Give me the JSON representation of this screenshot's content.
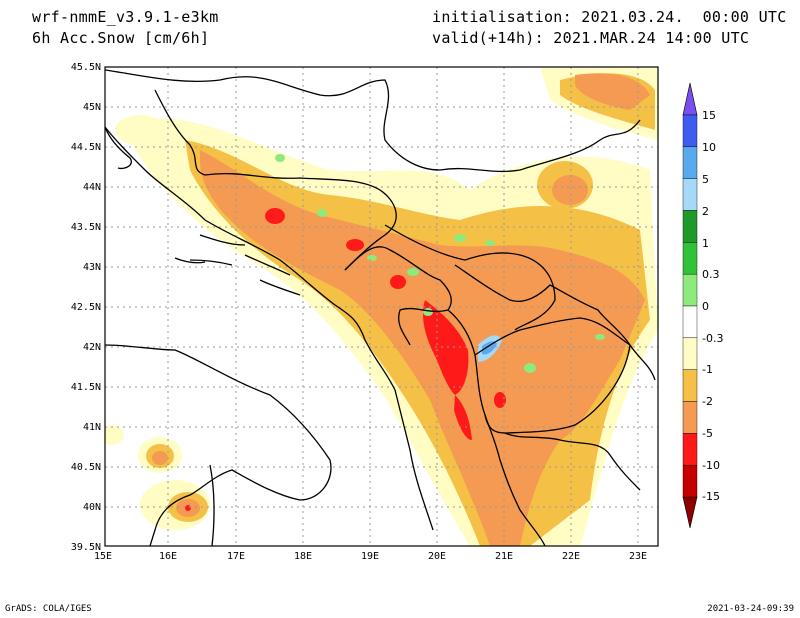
{
  "header": {
    "model": "wrf-nmmE_v3.9.1-e3km",
    "field": "6h Acc.Snow [cm/6h]",
    "init": "initialisation: 2021.03.24.  00:00 UTC",
    "valid": "valid(+14h): 2021.MAR.24 14:00 UTC"
  },
  "footer": {
    "left": "GrADS: COLA/IGES",
    "right": "2021-03-24-09:39"
  },
  "map": {
    "lon_range": [
      15,
      23.3
    ],
    "lat_range": [
      39.5,
      45.5
    ],
    "x_ticks": [
      "15E",
      "16E",
      "17E",
      "18E",
      "19E",
      "20E",
      "21E",
      "22E",
      "23E"
    ],
    "y_ticks": [
      "39.5N",
      "40N",
      "40.5N",
      "41N",
      "41.5N",
      "42N",
      "42.5N",
      "43N",
      "43.5N",
      "44N",
      "44.5N",
      "45N",
      "45.5N"
    ]
  },
  "colorbar": {
    "labels": [
      "15",
      "10",
      "5",
      "2",
      "1",
      "0.3",
      "0",
      "-0.3",
      "-1",
      "-2",
      "-5",
      "-10",
      "-15"
    ],
    "colors": [
      "#7a4ef0",
      "#3f5cf0",
      "#5aa8ee",
      "#a6d8f7",
      "#1f9a2a",
      "#32c23a",
      "#8ceb7c",
      "#ffffff",
      "#fffcc4",
      "#f5c046",
      "#f59a52",
      "#ff1a1a",
      "#c40000",
      "#8e0000"
    ]
  }
}
